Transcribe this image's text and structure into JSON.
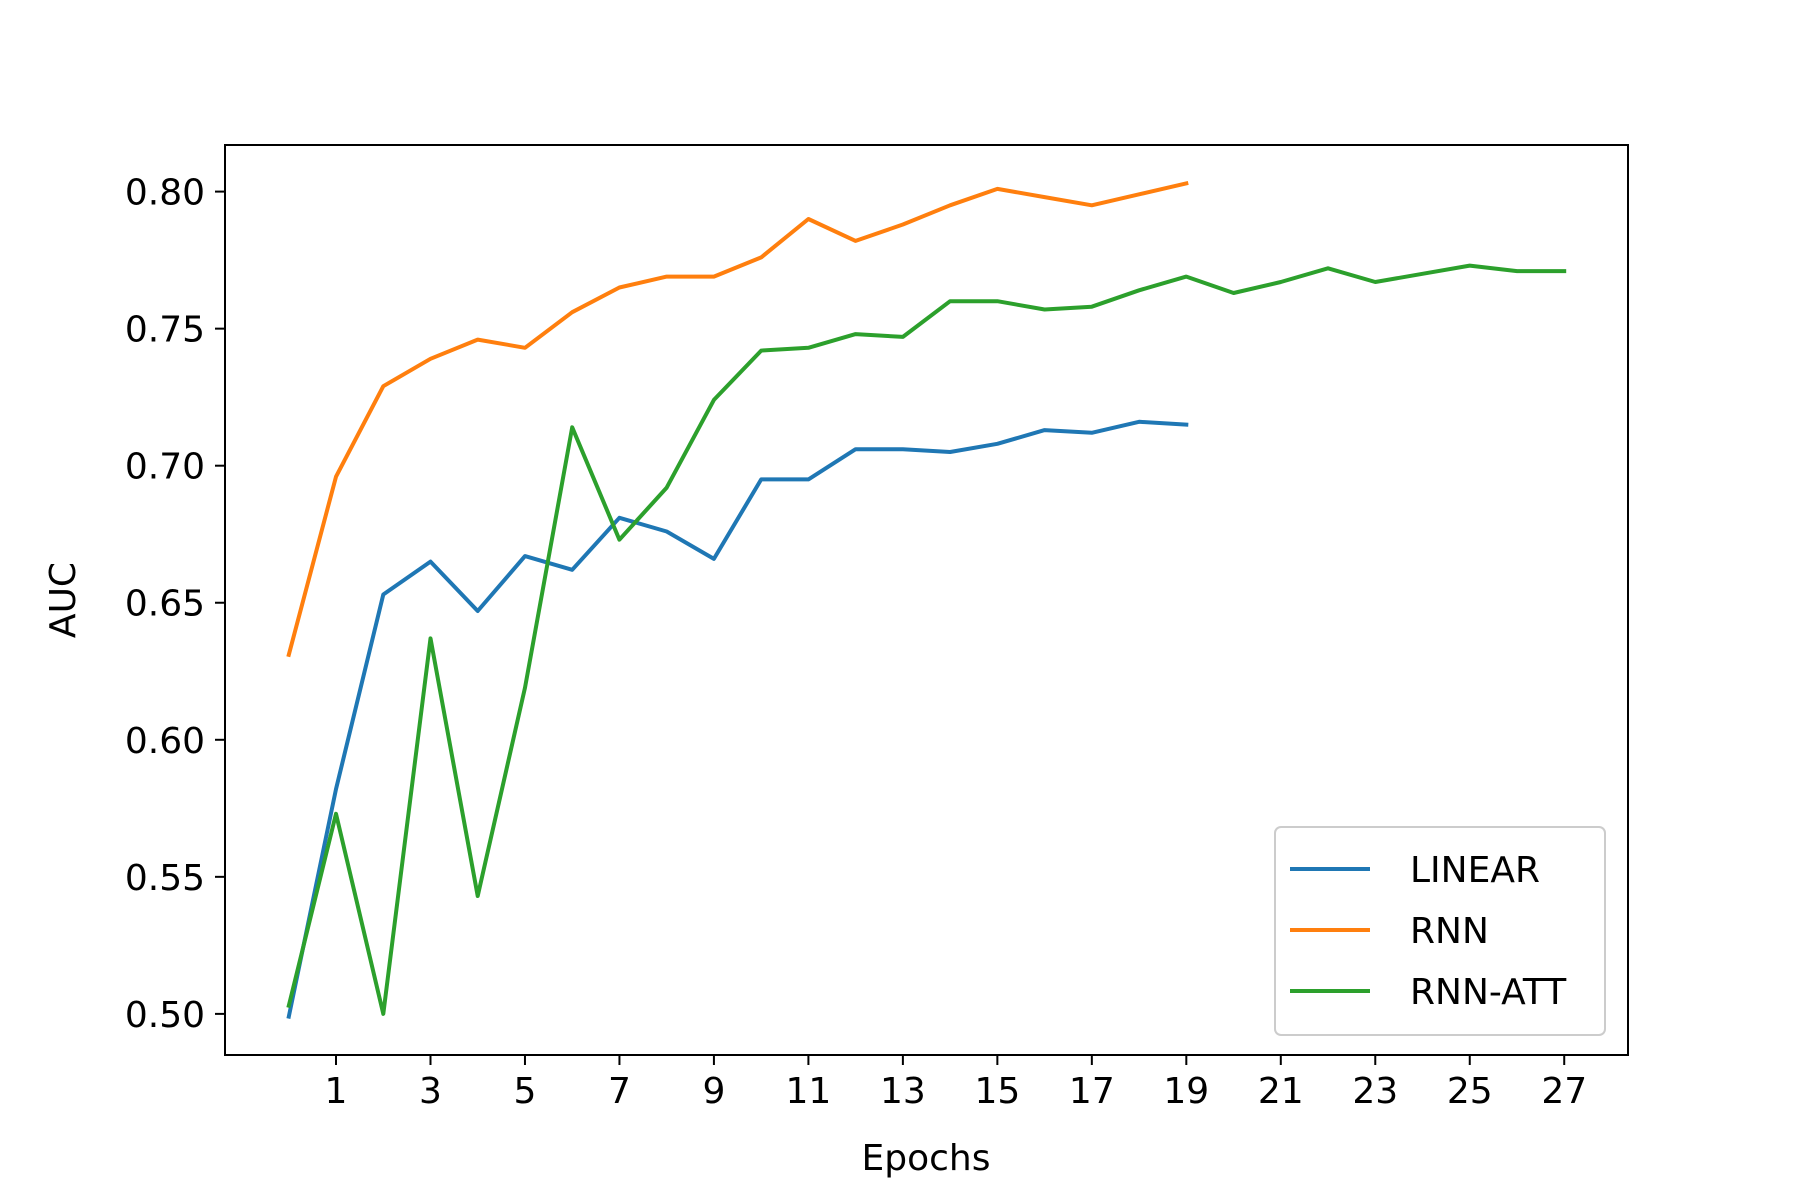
{
  "chart_data": {
    "type": "line",
    "title": "",
    "xlabel": "Epochs",
    "ylabel": "AUC",
    "xlim": [
      -1.35,
      28.35
    ],
    "ylim": [
      0.485,
      0.817
    ],
    "xticks": [
      1,
      3,
      5,
      7,
      9,
      11,
      13,
      15,
      17,
      19,
      21,
      23,
      25,
      27
    ],
    "yticks": [
      0.5,
      0.55,
      0.6,
      0.65,
      0.7,
      0.75,
      0.8
    ],
    "ytick_labels": [
      "0.50",
      "0.55",
      "0.60",
      "0.65",
      "0.70",
      "0.75",
      "0.80"
    ],
    "grid": false,
    "legend_position": "bottom-right",
    "series": [
      {
        "name": "LINEAR",
        "color": "#1f77b4",
        "x": [
          0,
          1,
          2,
          3,
          4,
          5,
          6,
          7,
          8,
          9,
          10,
          11,
          12,
          13,
          14,
          15,
          16,
          17,
          18,
          19
        ],
        "values": [
          0.499,
          0.582,
          0.653,
          0.665,
          0.647,
          0.667,
          0.662,
          0.681,
          0.676,
          0.666,
          0.695,
          0.695,
          0.706,
          0.706,
          0.705,
          0.708,
          0.713,
          0.712,
          0.716,
          0.715
        ]
      },
      {
        "name": "RNN",
        "color": "#ff7f0e",
        "x": [
          0,
          1,
          2,
          3,
          4,
          5,
          6,
          7,
          8,
          9,
          10,
          11,
          12,
          13,
          14,
          15,
          16,
          17,
          18,
          19
        ],
        "values": [
          0.631,
          0.696,
          0.729,
          0.739,
          0.746,
          0.743,
          0.756,
          0.765,
          0.769,
          0.769,
          0.776,
          0.79,
          0.782,
          0.788,
          0.795,
          0.801,
          0.798,
          0.795,
          0.799,
          0.803
        ]
      },
      {
        "name": "RNN-ATT",
        "color": "#2ca02c",
        "x": [
          0,
          1,
          2,
          3,
          4,
          5,
          6,
          7,
          8,
          9,
          10,
          11,
          12,
          13,
          14,
          15,
          16,
          17,
          18,
          19,
          20,
          21,
          22,
          23,
          24,
          25,
          26,
          27
        ],
        "values": [
          0.503,
          0.573,
          0.5,
          0.637,
          0.543,
          0.619,
          0.714,
          0.673,
          0.692,
          0.724,
          0.742,
          0.743,
          0.748,
          0.747,
          0.76,
          0.76,
          0.757,
          0.758,
          0.764,
          0.769,
          0.763,
          0.767,
          0.772,
          0.767,
          0.77,
          0.773,
          0.771,
          0.771
        ]
      }
    ]
  }
}
